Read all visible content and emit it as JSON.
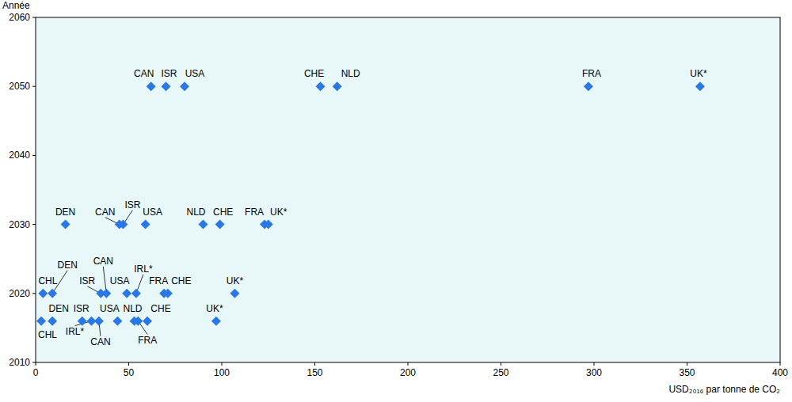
{
  "chart_data": {
    "type": "scatter",
    "x_label": "USD₂₀₁₆ par tonne de CO₂",
    "y_label": "Année",
    "labels": [
      "CAN",
      "ISR",
      "USA",
      "CHE",
      "NLD",
      "FRA",
      "UK*",
      "DEN",
      "CAN",
      "ISR",
      "USA",
      "NLD",
      "CHE",
      "FRA",
      "UK*",
      "CHL",
      "DEN",
      "ISR",
      "CAN",
      "USA",
      "IRL*",
      "FRA",
      "CHE",
      "UK*",
      "CHL",
      "DEN",
      "ISR",
      "IRL*",
      "CAN",
      "USA",
      "NLD",
      "FRA",
      "CHE",
      "UK*"
    ],
    "x": [
      62,
      70,
      80,
      153,
      162,
      297,
      357,
      16,
      45,
      47,
      59,
      90,
      99,
      123,
      125,
      4,
      9,
      35,
      38,
      49,
      54,
      69,
      71,
      107,
      3,
      9,
      25,
      30,
      34,
      44,
      53,
      55,
      60,
      97
    ],
    "values": [
      2050,
      2050,
      2050,
      2050,
      2050,
      2050,
      2050,
      2030,
      2030,
      2030,
      2030,
      2030,
      2030,
      2030,
      2030,
      2020,
      2020,
      2020,
      2020,
      2020,
      2020,
      2020,
      2020,
      2020,
      2016,
      2016,
      2016,
      2016,
      2016,
      2016,
      2016,
      2016,
      2016,
      2016
    ],
    "color": "#2a78e4",
    "marker": "diamond",
    "xlim": [
      0,
      400
    ],
    "xticks": [
      0,
      50,
      100,
      150,
      200,
      250,
      300,
      350,
      400
    ],
    "ylim": [
      2010,
      2060
    ],
    "yticks": [
      2010,
      2020,
      2030,
      2040,
      2050,
      2060
    ],
    "grid": false
  }
}
